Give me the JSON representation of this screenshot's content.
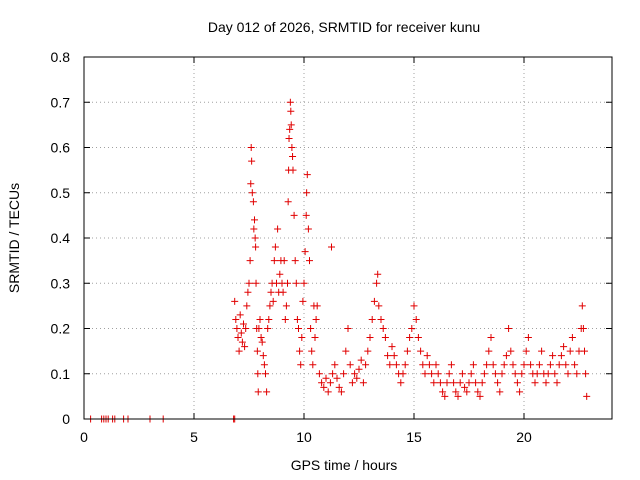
{
  "chart_data": {
    "type": "scatter",
    "title": "Day 012 of 2026, SRMTID for receiver kunu",
    "xlabel": "GPS time / hours",
    "ylabel": "SRMTID / TECUs",
    "xlim": [
      0,
      24
    ],
    "ylim": [
      0,
      0.8
    ],
    "xticks": [
      0,
      5,
      10,
      15,
      20
    ],
    "xtick_labels": [
      "0",
      "5",
      "10",
      "15",
      "20"
    ],
    "yticks": [
      0,
      0.1,
      0.2,
      0.3,
      0.4,
      0.5,
      0.6,
      0.7,
      0.8
    ],
    "ytick_labels": [
      "0",
      "0.1",
      "0.2",
      "0.3",
      "0.4",
      "0.5",
      "0.6",
      "0.7",
      "0.8"
    ],
    "grid": true,
    "legend": "none",
    "marker": "+",
    "color": "#e00000",
    "series": [
      {
        "name": "SRMTID",
        "points": [
          [
            0.3,
            0
          ],
          [
            0.8,
            0
          ],
          [
            0.9,
            0
          ],
          [
            1.0,
            0
          ],
          [
            1.1,
            0
          ],
          [
            1.3,
            0
          ],
          [
            1.4,
            0
          ],
          [
            1.8,
            0
          ],
          [
            2.0,
            0
          ],
          [
            3.0,
            0
          ],
          [
            3.6,
            0
          ],
          [
            6.8,
            0
          ],
          [
            6.85,
            0
          ],
          [
            6.85,
            0.26
          ],
          [
            6.9,
            0.22
          ],
          [
            6.95,
            0.2
          ],
          [
            7.0,
            0.18
          ],
          [
            7.05,
            0.15
          ],
          [
            7.1,
            0.23
          ],
          [
            7.15,
            0.19
          ],
          [
            7.2,
            0.17
          ],
          [
            7.25,
            0.21
          ],
          [
            7.3,
            0.16
          ],
          [
            7.35,
            0.2
          ],
          [
            7.4,
            0.25
          ],
          [
            7.45,
            0.28
          ],
          [
            7.5,
            0.3
          ],
          [
            7.55,
            0.35
          ],
          [
            7.58,
            0.52
          ],
          [
            7.6,
            0.6
          ],
          [
            7.62,
            0.57
          ],
          [
            7.65,
            0.5
          ],
          [
            7.7,
            0.48
          ],
          [
            7.72,
            0.42
          ],
          [
            7.75,
            0.44
          ],
          [
            7.78,
            0.4
          ],
          [
            7.8,
            0.38
          ],
          [
            7.82,
            0.3
          ],
          [
            7.85,
            0.2
          ],
          [
            7.88,
            0.15
          ],
          [
            7.9,
            0.1
          ],
          [
            7.92,
            0.06
          ],
          [
            7.95,
            0.2
          ],
          [
            8.0,
            0.22
          ],
          [
            8.05,
            0.18
          ],
          [
            8.1,
            0.17
          ],
          [
            8.15,
            0.14
          ],
          [
            8.2,
            0.12
          ],
          [
            8.25,
            0.1
          ],
          [
            8.3,
            0.06
          ],
          [
            8.35,
            0.2
          ],
          [
            8.4,
            0.22
          ],
          [
            8.45,
            0.25
          ],
          [
            8.5,
            0.28
          ],
          [
            8.55,
            0.3
          ],
          [
            8.6,
            0.26
          ],
          [
            8.65,
            0.35
          ],
          [
            8.7,
            0.38
          ],
          [
            8.75,
            0.3
          ],
          [
            8.8,
            0.42
          ],
          [
            8.85,
            0.28
          ],
          [
            8.9,
            0.32
          ],
          [
            8.95,
            0.35
          ],
          [
            9.0,
            0.3
          ],
          [
            9.05,
            0.28
          ],
          [
            9.1,
            0.35
          ],
          [
            9.15,
            0.22
          ],
          [
            9.2,
            0.25
          ],
          [
            9.25,
            0.3
          ],
          [
            9.28,
            0.48
          ],
          [
            9.3,
            0.55
          ],
          [
            9.32,
            0.62
          ],
          [
            9.35,
            0.64
          ],
          [
            9.38,
            0.7
          ],
          [
            9.4,
            0.68
          ],
          [
            9.42,
            0.65
          ],
          [
            9.45,
            0.6
          ],
          [
            9.48,
            0.58
          ],
          [
            9.5,
            0.55
          ],
          [
            9.55,
            0.45
          ],
          [
            9.6,
            0.35
          ],
          [
            9.65,
            0.3
          ],
          [
            9.7,
            0.22
          ],
          [
            9.75,
            0.2
          ],
          [
            9.8,
            0.15
          ],
          [
            9.85,
            0.12
          ],
          [
            9.9,
            0.18
          ],
          [
            9.95,
            0.26
          ],
          [
            10.0,
            0.3
          ],
          [
            10.05,
            0.37
          ],
          [
            10.1,
            0.45
          ],
          [
            10.12,
            0.5
          ],
          [
            10.15,
            0.54
          ],
          [
            10.2,
            0.42
          ],
          [
            10.25,
            0.35
          ],
          [
            10.3,
            0.2
          ],
          [
            10.35,
            0.15
          ],
          [
            10.4,
            0.12
          ],
          [
            10.45,
            0.25
          ],
          [
            10.5,
            0.18
          ],
          [
            10.55,
            0.22
          ],
          [
            10.6,
            0.25
          ],
          [
            10.7,
            0.1
          ],
          [
            10.8,
            0.08
          ],
          [
            10.9,
            0.07
          ],
          [
            11.0,
            0.09
          ],
          [
            11.1,
            0.06
          ],
          [
            11.2,
            0.08
          ],
          [
            11.3,
            0.1
          ],
          [
            11.25,
            0.38
          ],
          [
            11.4,
            0.12
          ],
          [
            11.5,
            0.09
          ],
          [
            11.6,
            0.07
          ],
          [
            11.7,
            0.06
          ],
          [
            11.8,
            0.1
          ],
          [
            11.9,
            0.15
          ],
          [
            12.0,
            0.2
          ],
          [
            12.1,
            0.12
          ],
          [
            12.2,
            0.08
          ],
          [
            12.3,
            0.1
          ],
          [
            12.4,
            0.09
          ],
          [
            12.5,
            0.11
          ],
          [
            12.6,
            0.13
          ],
          [
            12.7,
            0.08
          ],
          [
            12.8,
            0.12
          ],
          [
            12.9,
            0.15
          ],
          [
            13.0,
            0.18
          ],
          [
            13.1,
            0.22
          ],
          [
            13.2,
            0.26
          ],
          [
            13.3,
            0.3
          ],
          [
            13.35,
            0.32
          ],
          [
            13.4,
            0.25
          ],
          [
            13.5,
            0.22
          ],
          [
            13.6,
            0.2
          ],
          [
            13.7,
            0.18
          ],
          [
            13.8,
            0.14
          ],
          [
            13.9,
            0.12
          ],
          [
            14.0,
            0.16
          ],
          [
            14.1,
            0.14
          ],
          [
            14.2,
            0.12
          ],
          [
            14.3,
            0.1
          ],
          [
            14.4,
            0.08
          ],
          [
            14.5,
            0.1
          ],
          [
            14.6,
            0.12
          ],
          [
            14.7,
            0.15
          ],
          [
            14.8,
            0.18
          ],
          [
            14.9,
            0.2
          ],
          [
            15.0,
            0.25
          ],
          [
            15.1,
            0.22
          ],
          [
            15.2,
            0.18
          ],
          [
            15.3,
            0.15
          ],
          [
            15.4,
            0.12
          ],
          [
            15.5,
            0.1
          ],
          [
            15.6,
            0.14
          ],
          [
            15.7,
            0.12
          ],
          [
            15.8,
            0.1
          ],
          [
            15.9,
            0.08
          ],
          [
            16.0,
            0.12
          ],
          [
            16.1,
            0.1
          ],
          [
            16.2,
            0.08
          ],
          [
            16.3,
            0.06
          ],
          [
            16.4,
            0.05
          ],
          [
            16.5,
            0.08
          ],
          [
            16.6,
            0.1
          ],
          [
            16.7,
            0.12
          ],
          [
            16.8,
            0.08
          ],
          [
            16.9,
            0.06
          ],
          [
            17.0,
            0.05
          ],
          [
            17.1,
            0.08
          ],
          [
            17.2,
            0.1
          ],
          [
            17.3,
            0.07
          ],
          [
            17.4,
            0.06
          ],
          [
            17.5,
            0.08
          ],
          [
            17.6,
            0.1
          ],
          [
            17.7,
            0.12
          ],
          [
            17.8,
            0.08
          ],
          [
            17.9,
            0.06
          ],
          [
            18.0,
            0.05
          ],
          [
            18.1,
            0.08
          ],
          [
            18.2,
            0.1
          ],
          [
            18.3,
            0.12
          ],
          [
            18.4,
            0.15
          ],
          [
            18.5,
            0.18
          ],
          [
            18.6,
            0.12
          ],
          [
            18.7,
            0.1
          ],
          [
            18.8,
            0.08
          ],
          [
            18.9,
            0.06
          ],
          [
            19.0,
            0.1
          ],
          [
            19.1,
            0.12
          ],
          [
            19.2,
            0.14
          ],
          [
            19.3,
            0.2
          ],
          [
            19.4,
            0.15
          ],
          [
            19.5,
            0.12
          ],
          [
            19.6,
            0.1
          ],
          [
            19.7,
            0.08
          ],
          [
            19.8,
            0.06
          ],
          [
            19.9,
            0.1
          ],
          [
            20.0,
            0.12
          ],
          [
            20.1,
            0.15
          ],
          [
            20.2,
            0.18
          ],
          [
            20.3,
            0.12
          ],
          [
            20.4,
            0.1
          ],
          [
            20.5,
            0.08
          ],
          [
            20.6,
            0.1
          ],
          [
            20.7,
            0.12
          ],
          [
            20.8,
            0.15
          ],
          [
            20.9,
            0.1
          ],
          [
            21.0,
            0.08
          ],
          [
            21.1,
            0.1
          ],
          [
            21.2,
            0.12
          ],
          [
            21.3,
            0.14
          ],
          [
            21.4,
            0.1
          ],
          [
            21.5,
            0.08
          ],
          [
            21.6,
            0.12
          ],
          [
            21.7,
            0.14
          ],
          [
            21.8,
            0.16
          ],
          [
            21.9,
            0.12
          ],
          [
            22.0,
            0.1
          ],
          [
            22.1,
            0.15
          ],
          [
            22.2,
            0.18
          ],
          [
            22.3,
            0.12
          ],
          [
            22.4,
            0.1
          ],
          [
            22.5,
            0.15
          ],
          [
            22.6,
            0.2
          ],
          [
            22.65,
            0.25
          ],
          [
            22.7,
            0.2
          ],
          [
            22.75,
            0.15
          ],
          [
            22.8,
            0.1
          ],
          [
            22.85,
            0.05
          ]
        ]
      }
    ]
  }
}
